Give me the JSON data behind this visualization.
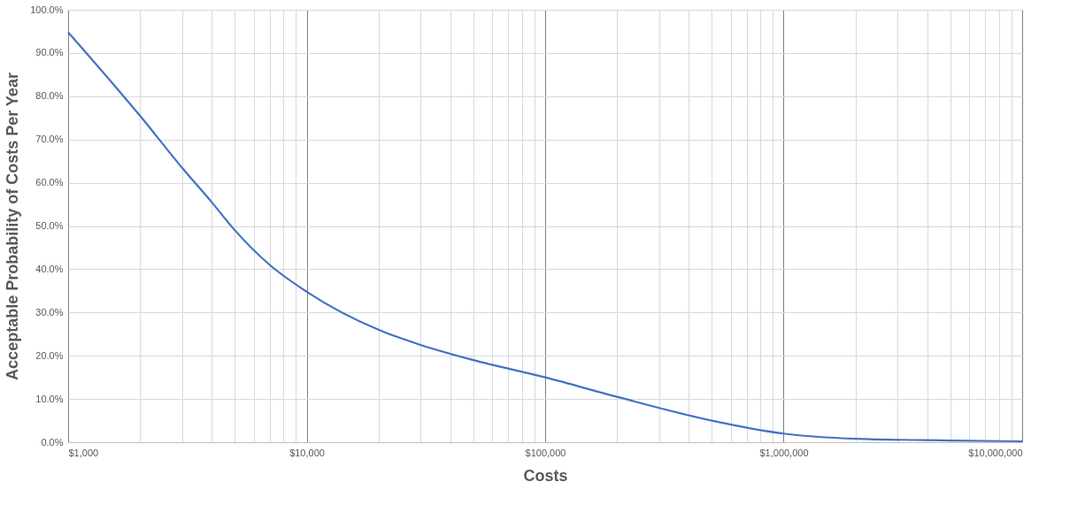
{
  "chart_data": {
    "type": "line",
    "xlabel": "Costs",
    "ylabel": "Acceptable Probability of Costs Per Year",
    "log": "x",
    "grid": true,
    "marker": "none",
    "line_style": "solid",
    "x": [
      1000,
      2000,
      3000,
      4000,
      5000,
      7000,
      10000,
      20000,
      30000,
      50000,
      100000,
      200000,
      500000,
      1000000,
      2000000,
      5000000,
      10000000
    ],
    "series": [
      {
        "color": "#4472c4",
        "values": [
          94.8,
          75.5,
          63.5,
          55.5,
          49,
          41,
          34.8,
          26,
          22.5,
          19,
          15,
          10.5,
          5,
          2,
          0.8,
          0.4,
          0.2
        ]
      }
    ],
    "xlim": [
      1000,
      10000000
    ],
    "xticks": [
      {
        "value": 1000,
        "label": "$1,000"
      },
      {
        "value": 2000,
        "label": null
      },
      {
        "value": 3000,
        "label": null
      },
      {
        "value": 4000,
        "label": null
      },
      {
        "value": 5000,
        "label": null
      },
      {
        "value": 6000,
        "label": null
      },
      {
        "value": 7000,
        "label": null
      },
      {
        "value": 8000,
        "label": null
      },
      {
        "value": 9000,
        "label": null
      },
      {
        "value": 10000,
        "label": "$10,000"
      },
      {
        "value": 20000,
        "label": null
      },
      {
        "value": 30000,
        "label": null
      },
      {
        "value": 40000,
        "label": null
      },
      {
        "value": 50000,
        "label": null
      },
      {
        "value": 60000,
        "label": null
      },
      {
        "value": 70000,
        "label": null
      },
      {
        "value": 80000,
        "label": null
      },
      {
        "value": 90000,
        "label": null
      },
      {
        "value": 100000,
        "label": "$100,000"
      },
      {
        "value": 200000,
        "label": null
      },
      {
        "value": 300000,
        "label": null
      },
      {
        "value": 400000,
        "label": null
      },
      {
        "value": 500000,
        "label": null
      },
      {
        "value": 600000,
        "label": null
      },
      {
        "value": 700000,
        "label": null
      },
      {
        "value": 800000,
        "label": null
      },
      {
        "value": 900000,
        "label": null
      },
      {
        "value": 1000000,
        "label": "$1,000,000"
      },
      {
        "value": 2000000,
        "label": null
      },
      {
        "value": 3000000,
        "label": null
      },
      {
        "value": 4000000,
        "label": null
      },
      {
        "value": 5000000,
        "label": null
      },
      {
        "value": 6000000,
        "label": null
      },
      {
        "value": 7000000,
        "label": null
      },
      {
        "value": 8000000,
        "label": null
      },
      {
        "value": 9000000,
        "label": null
      },
      {
        "value": 10000000,
        "label": "$10,000,000"
      }
    ],
    "ylim": [
      0,
      100
    ],
    "yticks": [
      {
        "value": 0,
        "label": "0.0%"
      },
      {
        "value": 10,
        "label": "10.0%"
      },
      {
        "value": 20,
        "label": "20.0%"
      },
      {
        "value": 30,
        "label": "30.0%"
      },
      {
        "value": 40,
        "label": "40.0%"
      },
      {
        "value": 50,
        "label": "50.0%"
      },
      {
        "value": 60,
        "label": "60.0%"
      },
      {
        "value": 70,
        "label": "70.0%"
      },
      {
        "value": 80,
        "label": "80.0%"
      },
      {
        "value": 90,
        "label": "90.0%"
      },
      {
        "value": 100,
        "label": "100.0%"
      }
    ]
  }
}
